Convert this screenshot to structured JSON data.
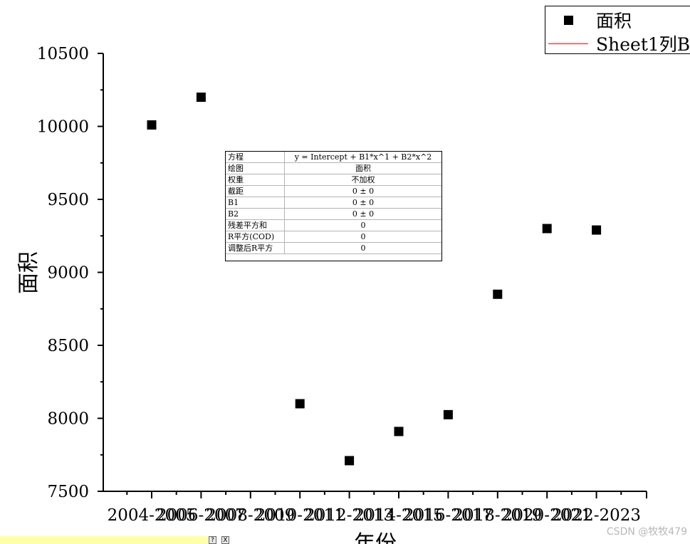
{
  "chart_data": {
    "type": "scatter",
    "xlabel": "年份",
    "ylabel": "面积",
    "ylim": [
      7500,
      10500
    ],
    "yticks": [
      "7500",
      "8000",
      "8500",
      "9000",
      "9500",
      "10000",
      "10500"
    ],
    "categories": [
      "2004-2005",
      "2006-2007",
      "2008-2009",
      "2010-2011",
      "2012-2013",
      "2014-2015",
      "2016-2017",
      "2018-2019",
      "2020-2021",
      "2022-2023"
    ],
    "tick_labels": [
      "2004-2005",
      "2006-2007",
      "2008-2009",
      "2010-2011",
      "2012-2013",
      "2014-2015",
      "2016-2017",
      "2018-2019",
      "2020-2021",
      "2022-2023"
    ],
    "series": [
      {
        "name": "面积",
        "values": [
          10010,
          10200,
          null,
          8100,
          7710,
          7910,
          8025,
          8850,
          9300,
          9290
        ],
        "color": "#000000",
        "marker": "square"
      },
      {
        "name": "Sheet1列B",
        "color": "#ff0000",
        "marker": "line"
      }
    ],
    "legend_placement": "top-right"
  },
  "fit_table": [
    {
      "key": "方程",
      "value": "y = Intercept + B1*x^1 + B2*x^2"
    },
    {
      "key": "绘图",
      "value": "面积"
    },
    {
      "key": "权重",
      "value": "不加权"
    },
    {
      "key": "截距",
      "value": "0 ± 0"
    },
    {
      "key": "B1",
      "value": "0 ± 0"
    },
    {
      "key": "B2",
      "value": "0 ± 0"
    },
    {
      "key": "残差平方和",
      "value": "0"
    },
    {
      "key": "R平方(COD)",
      "value": "0"
    },
    {
      "key": "调整后R平方",
      "value": "0"
    }
  ],
  "watermark": "CSDN @牧牧479",
  "mini_buttons": [
    "?",
    "X"
  ]
}
